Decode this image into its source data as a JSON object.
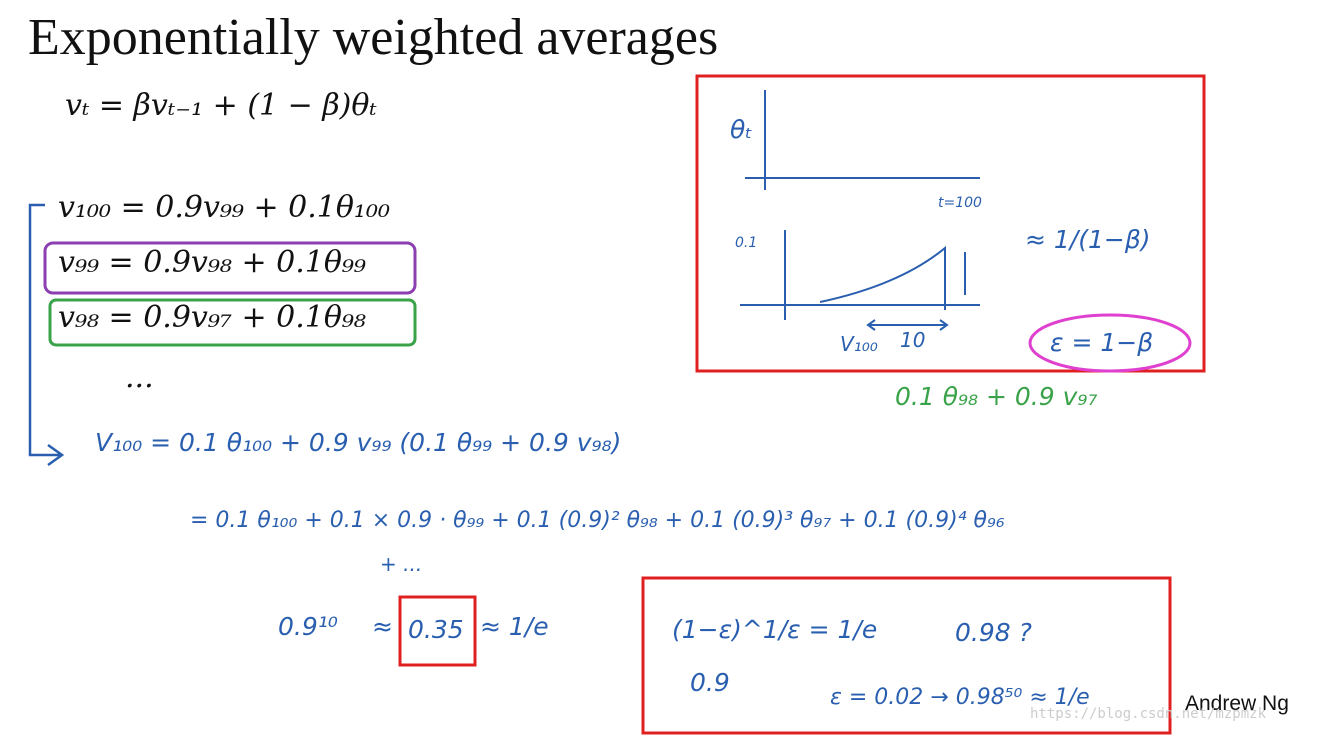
{
  "slide": {
    "title": "Exponentially weighted averages",
    "formula": "vₜ = βvₜ₋₁ + (1 − β)θₜ",
    "steps": [
      "v₁₀₀ = 0.9v₉₉ + 0.1θ₁₀₀",
      "v₉₉ = 0.9v₉₈ + 0.1θ₉₉",
      "v₉₈ = 0.9v₉₇ + 0.1θ₉₈",
      "..."
    ],
    "footer": "Andrew Ng",
    "watermark": "https://blog.csdn.net/mzpmzk"
  },
  "notes": {
    "expansion_1": "V₁₀₀ = 0.1 θ₁₀₀ + 0.9 v₉₉ (0.1 θ₉₉ + 0.9 v₉₈)",
    "expansion_2": "= 0.1 θ₁₀₀ + 0.1 × 0.9 · θ₉₉ + 0.1 (0.9)² θ₉₈ + 0.1 (0.9)³ θ₉₇ + 0.1 (0.9)⁴ θ₉₆",
    "expansion_3": "+ ...",
    "substitution": "0.1 θ₉₈ + 0.9 v₉₇",
    "decay_base": "0.9¹⁰",
    "approx": "≈",
    "decay_value": "0.35",
    "decay_result": "≈ 1/e",
    "limit": "(1−ε)^1/ε = 1/e",
    "limit_base": "0.9",
    "question": "0.98 ?",
    "example": "ε = 0.02 → 0.98⁵⁰ ≈ 1/e",
    "graph": {
      "y_label": "θₜ",
      "x_label": "t=100",
      "tick": "0.1",
      "window_label": "V₁₀₀",
      "window": "10",
      "approx": "≈ 1/(1−β)",
      "epsilon": "ε = 1−β"
    }
  }
}
